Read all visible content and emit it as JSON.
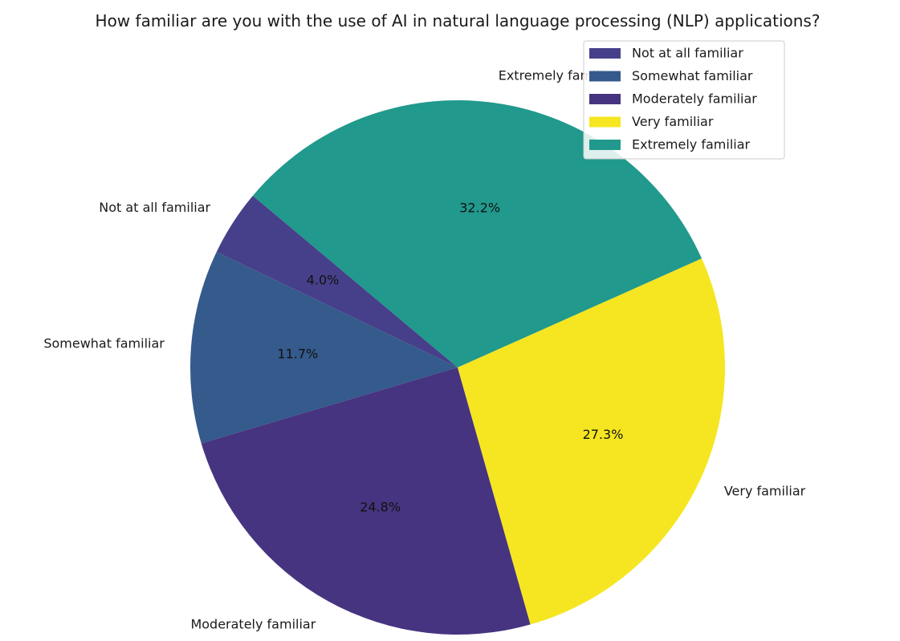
{
  "chart_data": {
    "type": "pie",
    "title": "How familiar are you with the use of AI in natural language processing (NLP) applications?",
    "categories": [
      "Not at all familiar",
      "Somewhat familiar",
      "Moderately familiar",
      "Very familiar",
      "Extremely familiar"
    ],
    "values": [
      4.0,
      11.7,
      24.8,
      27.3,
      32.2
    ],
    "percent_labels": [
      "4.0%",
      "11.7%",
      "24.8%",
      "27.3%",
      "32.2%"
    ],
    "colors": [
      "#46408a",
      "#355a8c",
      "#463480",
      "#f5e621",
      "#21998c"
    ],
    "start_angle_deg": 140,
    "direction": "counterclockwise",
    "legend": {
      "position": "top-right",
      "entries": [
        "Not at all familiar",
        "Somewhat familiar",
        "Moderately familiar",
        "Very familiar",
        "Extremely familiar"
      ]
    }
  }
}
